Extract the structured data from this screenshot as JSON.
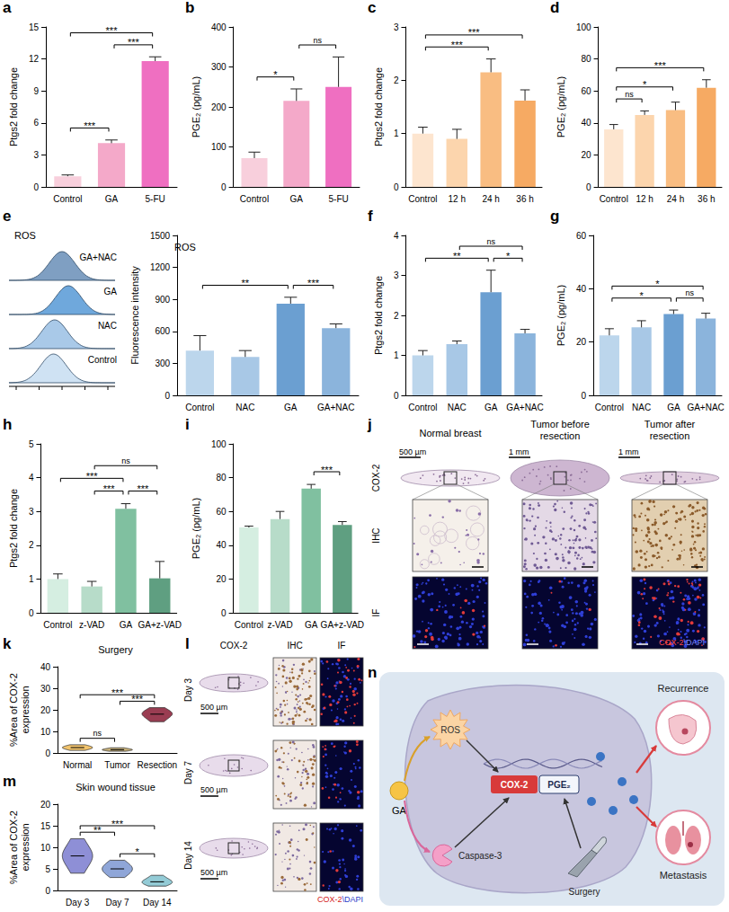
{
  "chart_data": [
    {
      "panel": "a",
      "type": "bar",
      "categories": [
        "Control",
        "GA",
        "5-FU"
      ],
      "values": [
        1.0,
        4.1,
        11.8
      ],
      "errors": [
        0.12,
        0.3,
        0.4
      ],
      "colors": [
        "#f8cfdc",
        "#f4a9c9",
        "#ef6fc1"
      ],
      "ylabel": "Ptgs2 fold change",
      "ylim": [
        0,
        15
      ],
      "yticks": [
        0,
        3,
        6,
        9,
        12,
        15
      ],
      "significance": [
        {
          "pair": [
            "GA",
            "5-FU"
          ],
          "label": "***"
        },
        {
          "pair": [
            "Control",
            "GA"
          ],
          "label": "***"
        },
        {
          "pair": [
            "Control",
            "5-FU"
          ],
          "label": "***"
        }
      ]
    },
    {
      "panel": "b",
      "type": "bar",
      "categories": [
        "Control",
        "GA",
        "5-FU"
      ],
      "values": [
        72,
        215,
        250
      ],
      "errors": [
        15,
        30,
        75
      ],
      "colors": [
        "#f8cfdc",
        "#f4a9c9",
        "#ef6fc1"
      ],
      "ylabel": "PGE₂ (pg/mL)",
      "ylim": [
        0,
        400
      ],
      "yticks": [
        0,
        100,
        200,
        300,
        400
      ],
      "significance": [
        {
          "pair": [
            "Control",
            "GA"
          ],
          "label": "*"
        },
        {
          "pair": [
            "GA",
            "5-FU"
          ],
          "label": "ns"
        }
      ]
    },
    {
      "panel": "c",
      "type": "bar",
      "categories": [
        "Control",
        "12 h",
        "24 h",
        "36 h"
      ],
      "values": [
        1.0,
        0.9,
        2.15,
        1.62
      ],
      "errors": [
        0.12,
        0.18,
        0.25,
        0.2
      ],
      "colors": [
        "#fde5cf",
        "#fcd5ad",
        "#f9bd82",
        "#f6aa63"
      ],
      "ylabel": "Ptgs2 fold change",
      "ylim": [
        0,
        3
      ],
      "yticks": [
        0,
        1,
        2,
        3
      ],
      "significance": [
        {
          "pair": [
            "Control",
            "24 h"
          ],
          "label": "***"
        },
        {
          "pair": [
            "Control",
            "36 h"
          ],
          "label": "***"
        }
      ]
    },
    {
      "panel": "d",
      "type": "bar",
      "categories": [
        "Control",
        "12 h",
        "24 h",
        "36 h"
      ],
      "values": [
        36,
        45,
        48,
        62
      ],
      "errors": [
        3,
        2.5,
        5,
        5
      ],
      "colors": [
        "#fde5cf",
        "#fcd5ad",
        "#f9bd82",
        "#f6aa63"
      ],
      "ylabel": "PGE₂ (pg/mL)",
      "ylim": [
        0,
        100
      ],
      "yticks": [
        0,
        20,
        40,
        60,
        80,
        100
      ],
      "significance": [
        {
          "pair": [
            "Control",
            "12 h"
          ],
          "label": "ns"
        },
        {
          "pair": [
            "Control",
            "24 h"
          ],
          "label": "*"
        },
        {
          "pair": [
            "Control",
            "36 h"
          ],
          "label": "***"
        }
      ]
    },
    {
      "type": "bar",
      "title": "ROS",
      "categories": [
        "Control",
        "NAC",
        "GA",
        "GA+NAC"
      ],
      "values": [
        420,
        360,
        860,
        630
      ],
      "errors": [
        140,
        60,
        60,
        40
      ],
      "colors": [
        "#bcd6ec",
        "#a8c8e6",
        "#6b9fd1",
        "#8bb4dc"
      ],
      "ylabel": "Fluorescence intensity",
      "ylim": [
        0,
        1500
      ],
      "yticks": [
        0,
        300,
        600,
        900,
        1200,
        1500
      ],
      "significance": [
        {
          "pair": [
            "GA",
            "GA+NAC"
          ],
          "label": "***"
        },
        {
          "pair": [
            "Control",
            "GA"
          ],
          "label": "**"
        }
      ]
    },
    {
      "panel": "f",
      "type": "bar",
      "categories": [
        "Control",
        "NAC",
        "GA",
        "GA+NAC"
      ],
      "values": [
        1.0,
        1.28,
        2.58,
        1.55
      ],
      "errors": [
        0.12,
        0.08,
        0.55,
        0.1
      ],
      "colors": [
        "#bcd6ec",
        "#a8c8e6",
        "#6b9fd1",
        "#8bb4dc"
      ],
      "ylabel": "Ptgs2 fold change",
      "ylim": [
        0,
        4
      ],
      "yticks": [
        0,
        1,
        2,
        3,
        4
      ],
      "significance": [
        {
          "pair": [
            "Control",
            "GA"
          ],
          "label": "**"
        },
        {
          "pair": [
            "GA",
            "GA+NAC"
          ],
          "label": "*"
        },
        {
          "pair": [
            "NAC",
            "GA+NAC"
          ],
          "label": "ns"
        }
      ]
    },
    {
      "panel": "g",
      "type": "bar",
      "categories": [
        "Control",
        "NAC",
        "GA",
        "GA+NAC"
      ],
      "values": [
        22.5,
        25.5,
        30.5,
        28.8
      ],
      "errors": [
        2.5,
        2.5,
        1.5,
        2
      ],
      "colors": [
        "#bcd6ec",
        "#a8c8e6",
        "#6b9fd1",
        "#8bb4dc"
      ],
      "ylabel": "PGE₂ (pg/mL)",
      "ylim": [
        0,
        60
      ],
      "yticks": [
        0,
        20,
        40,
        60
      ],
      "significance": [
        {
          "pair": [
            "Control",
            "GA"
          ],
          "label": "*"
        },
        {
          "pair": [
            "GA",
            "GA+NAC"
          ],
          "label": "ns"
        },
        {
          "pair": [
            "Control",
            "GA+NAC"
          ],
          "label": "*"
        }
      ]
    },
    {
      "panel": "h",
      "type": "bar",
      "categories": [
        "Control",
        "z-VAD",
        "GA",
        "GA+z-VAD"
      ],
      "values": [
        1.0,
        0.78,
        3.08,
        1.02
      ],
      "errors": [
        0.15,
        0.15,
        0.15,
        0.5
      ],
      "colors": [
        "#d5eee1",
        "#b7dcc9",
        "#80c0a0",
        "#5f9f81"
      ],
      "ylabel": "Ptgs2 fold change",
      "ylim": [
        0,
        5
      ],
      "yticks": [
        0,
        1,
        2,
        3,
        4,
        5
      ],
      "significance": [
        {
          "pair": [
            "z-VAD",
            "GA"
          ],
          "label": "***"
        },
        {
          "pair": [
            "GA",
            "GA+z-VAD"
          ],
          "label": "***"
        },
        {
          "pair": [
            "Control",
            "GA"
          ],
          "label": "***"
        },
        {
          "pair": [
            "z-VAD",
            "GA+z-VAD"
          ],
          "label": "ns"
        }
      ]
    },
    {
      "panel": "i",
      "type": "bar",
      "categories": [
        "Control",
        "z-VAD",
        "GA",
        "GA+z-VAD"
      ],
      "values": [
        50.5,
        55.5,
        73.5,
        52
      ],
      "errors": [
        0.8,
        4.5,
        2.5,
        2
      ],
      "colors": [
        "#d5eee1",
        "#b7dcc9",
        "#80c0a0",
        "#5f9f81"
      ],
      "ylabel": "PGE₂ (pg/mL)",
      "ylim": [
        0,
        100
      ],
      "yticks": [
        0,
        20,
        40,
        60,
        80,
        100
      ],
      "significance": [
        {
          "pair": [
            "GA",
            "GA+z-VAD"
          ],
          "label": "***"
        }
      ]
    },
    {
      "panel": "k",
      "type": "violin",
      "title": "Surgery",
      "categories": [
        "Normal",
        "Tumor",
        "Resection"
      ],
      "samples": [
        [
          1.2,
          1.8,
          2.2,
          2.5,
          2.8,
          3.2,
          3.8
        ],
        [
          0.8,
          1.1,
          1.4,
          1.5,
          1.7,
          2.0,
          2.4
        ],
        [
          14.5,
          16,
          17.5,
          18,
          18.5,
          19.5,
          21
        ]
      ],
      "colors": [
        "#f2c46d",
        "#c9b27a",
        "#9a3d52"
      ],
      "ylabel": "%Area of COX-2 expression",
      "ylim": [
        0,
        40
      ],
      "yticks": [
        0,
        10,
        20,
        30,
        40
      ],
      "significance": [
        {
          "pair": [
            "Normal",
            "Tumor"
          ],
          "label": "ns"
        },
        {
          "pair": [
            "Tumor",
            "Resection"
          ],
          "label": "***"
        },
        {
          "pair": [
            "Normal",
            "Resection"
          ],
          "label": "***"
        }
      ]
    },
    {
      "panel": "m",
      "type": "violin",
      "title": "Skin wound tissue",
      "categories": [
        "Day 3",
        "Day 7",
        "Day 14"
      ],
      "samples": [
        [
          4,
          6,
          7.5,
          8,
          8.5,
          10,
          12
        ],
        [
          3,
          4,
          4.5,
          5,
          5.5,
          6,
          7
        ],
        [
          1,
          1.5,
          1.8,
          2,
          2.3,
          2.8,
          3.5
        ]
      ],
      "colors": [
        "#8e8fd6",
        "#8fa6d8",
        "#93cbd6"
      ],
      "ylabel": "%Area of COX-2 expression",
      "ylim": [
        0,
        20
      ],
      "yticks": [
        0,
        5,
        10,
        15,
        20
      ],
      "significance": [
        {
          "pair": [
            "Day 3",
            "Day 7"
          ],
          "label": "**"
        },
        {
          "pair": [
            "Day 7",
            "Day 14"
          ],
          "label": "*"
        },
        {
          "pair": [
            "Day 3",
            "Day 14"
          ],
          "label": "***"
        }
      ]
    }
  ],
  "histogram_e": {
    "panel": "e",
    "title": "ROS",
    "rows": [
      "GA+NAC",
      "GA",
      "NAC",
      "Control"
    ],
    "colors": [
      "#7f9fc2",
      "#6fa8dc",
      "#a9c9e8",
      "#cfe2f3"
    ]
  },
  "images_j": {
    "panel": "j",
    "marker_label": "COX-2",
    "row_labels": [
      "IHC",
      "IF"
    ],
    "columns": [
      {
        "title": "Normal breast",
        "scale_bar": "500 µm"
      },
      {
        "title": "Tumor before resection",
        "scale_bar": "1 mm"
      },
      {
        "title": "Tumor after resection",
        "scale_bar": "1 mm"
      }
    ],
    "if_legend": [
      "COX-2",
      "\\DAPI"
    ]
  },
  "images_l": {
    "panel": "l",
    "column_labels": [
      "COX-2",
      "IHC",
      "IF"
    ],
    "rows": [
      {
        "label": "Day 3",
        "scale_bar": "500 µm"
      },
      {
        "label": "Day 7",
        "scale_bar": "500 µm"
      },
      {
        "label": "Day 14",
        "scale_bar": "500 µm"
      }
    ],
    "if_legend": [
      "COX-2",
      "\\DAPI"
    ]
  },
  "diagram_n": {
    "panel": "n",
    "nodes": {
      "ga": "GA",
      "ros": "ROS",
      "caspase": "Caspase-3",
      "cox2": "COX-2",
      "pge2": "PGE₂",
      "surgery": "Surgery",
      "recurrence": "Recurrence",
      "metastasis": "Metastasis"
    }
  }
}
